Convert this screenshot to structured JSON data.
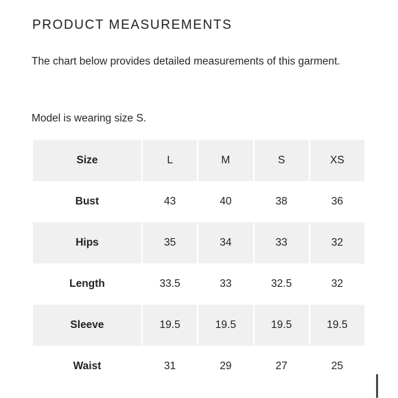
{
  "heading": "PRODUCT MEASUREMENTS",
  "description": "The chart below provides detailed measurements of this garment.",
  "model_note": "Model is wearing size S.",
  "size_table": {
    "header": {
      "label": "Size",
      "sizes": [
        "L",
        "M",
        "S",
        "XS"
      ]
    },
    "rows": [
      {
        "label": "Bust",
        "values": [
          "43",
          "40",
          "38",
          "36"
        ]
      },
      {
        "label": "Hips",
        "values": [
          "35",
          "34",
          "33",
          "32"
        ]
      },
      {
        "label": "Length",
        "values": [
          "33.5",
          "33",
          "32.5",
          "32"
        ]
      },
      {
        "label": "Sleeve",
        "values": [
          "19.5",
          "19.5",
          "19.5",
          "19.5"
        ]
      },
      {
        "label": "Waist",
        "values": [
          "31",
          "29",
          "27",
          "25"
        ]
      }
    ]
  },
  "colors": {
    "shaded_row": "#f0f0f0",
    "text": "#222222",
    "scroll_indicator": "#4a4a4a"
  }
}
